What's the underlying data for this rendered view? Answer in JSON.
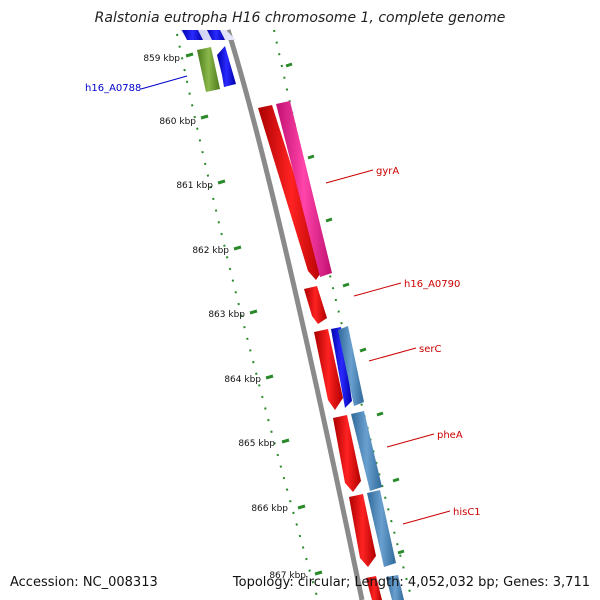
{
  "title": "Ralstonia eutropha H16 chromosome 1, complete genome",
  "footer": {
    "accession": "Accession: NC_008313",
    "summary": "Topology: circular; Length: 4,052,032 bp; Genes: 3,711"
  },
  "ticks": [
    "859 kbp",
    "860 kbp",
    "861 kbp",
    "862 kbp",
    "863 kbp",
    "864 kbp",
    "865 kbp",
    "866 kbp",
    "867 kbp"
  ],
  "genes": [
    {
      "label": "h16_A0788",
      "color": "#0000cc"
    },
    {
      "label": "gyrA",
      "color": "#cc0000"
    },
    {
      "label": "h16_A0790",
      "color": "#cc0000"
    },
    {
      "label": "serC",
      "color": "#cc0000"
    },
    {
      "label": "pheA",
      "color": "#cc0000"
    },
    {
      "label": "hisC1",
      "color": "#cc0000"
    }
  ],
  "colors": {
    "backbone": "#888888",
    "tick": "#2a8a2a",
    "cds_red": "#ee1111",
    "cds_pink": "#ee3399",
    "cds_blue": "#1111ee",
    "cds_steel": "#4a82b8",
    "cds_olive": "#6b9a2e"
  }
}
